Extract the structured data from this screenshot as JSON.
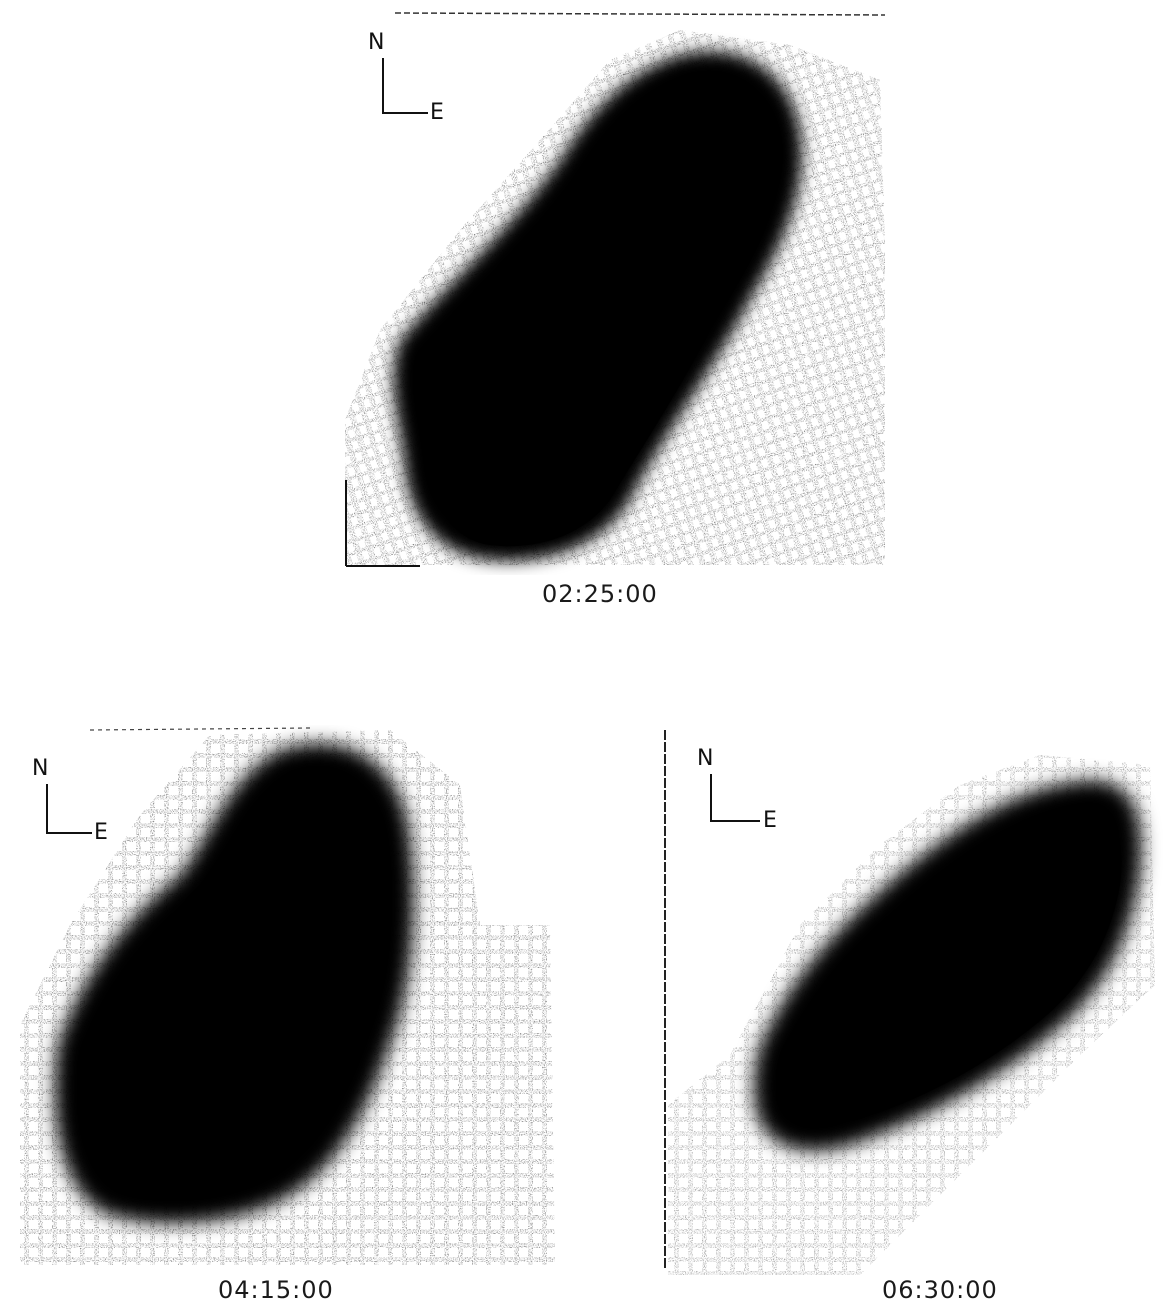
{
  "panels": [
    {
      "time": "02:25:00",
      "compass": {
        "north": "N",
        "east": "E"
      }
    },
    {
      "time": "04:15:00",
      "compass": {
        "north": "N",
        "east": "E"
      }
    },
    {
      "time": "06:30:00",
      "compass": {
        "north": "N",
        "east": "E"
      }
    }
  ],
  "colors": {
    "background": "#ffffff",
    "blob": "#000000",
    "caption": "#1a1a1a"
  }
}
